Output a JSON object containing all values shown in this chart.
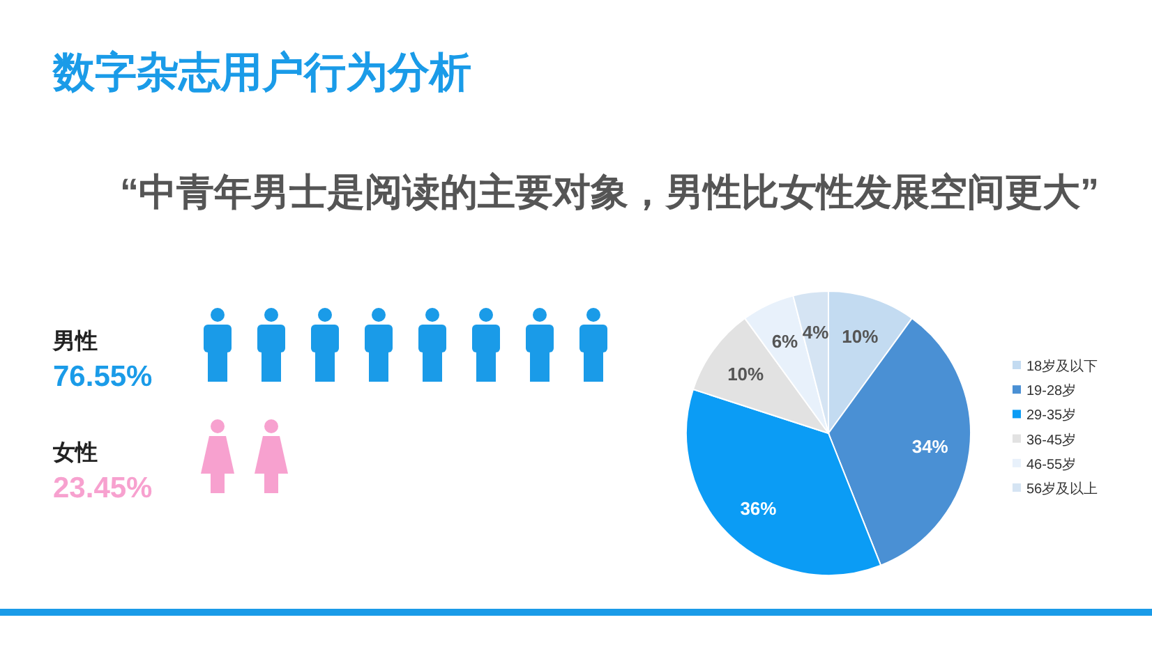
{
  "chart_data": [
    {
      "type": "other",
      "title": "数字杂志用户行为分析",
      "subtitle": "“中青年男士是阅读的主要对象，男性比女性发展空间更大”",
      "categories": [
        "男性",
        "女性"
      ],
      "values": [
        76.55,
        23.45
      ],
      "value_labels": [
        "76.55%",
        "23.45%"
      ],
      "colors": [
        "#1a9be8",
        "#f7a1cf"
      ]
    },
    {
      "type": "pie",
      "categories": [
        "18岁及以下",
        "19-28岁",
        "29-35岁",
        "36-45岁",
        "46-55岁",
        "56岁及以上"
      ],
      "values": [
        10,
        34,
        36,
        10,
        6,
        4
      ],
      "colors": [
        "#c3dbf1",
        "#4a90d4",
        "#0b9cf5",
        "#e2e2e2",
        "#e8f1fb",
        "#d5e4f3"
      ],
      "value_labels": [
        "10%",
        "34%",
        "36%",
        "10%",
        "6%",
        "4%"
      ],
      "legend": "right"
    }
  ]
}
